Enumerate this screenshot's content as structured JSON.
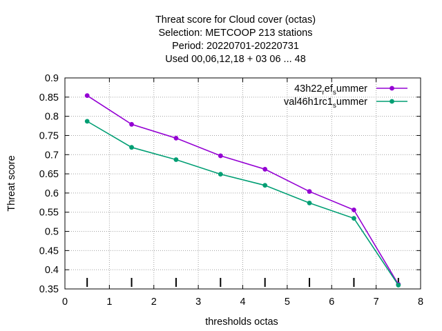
{
  "chart_data": {
    "type": "line",
    "title_lines": [
      "Threat score  for Cloud cover (octas)",
      "Selection: METCOOP    213 stations",
      "Period: 20220701-20220731",
      "Used  00,06,12,18  + 03 06 ... 48"
    ],
    "xlabel": "thresholds octas",
    "ylabel": "Threat score",
    "xlim": [
      0,
      8
    ],
    "ylim": [
      0.35,
      0.9
    ],
    "xticks": [
      "0",
      "1",
      "2",
      "3",
      "4",
      "5",
      "6",
      "7",
      "8"
    ],
    "yticks": [
      "0.35",
      "0.4",
      "0.45",
      "0.5",
      "0.55",
      "0.6",
      "0.65",
      "0.7",
      "0.75",
      "0.8",
      "0.85",
      "0.9"
    ],
    "grid": true,
    "legend_position": "top-right",
    "x": [
      0.5,
      1.5,
      2.5,
      3.5,
      4.5,
      5.5,
      6.5,
      7.5
    ],
    "series": [
      {
        "name_main": "43h22",
        "name_sub1": "r",
        "name_mid": "ef",
        "name_sub2": "s",
        "name_tail": "ummer",
        "color": "#9400d3",
        "values": [
          0.854,
          0.779,
          0.743,
          0.697,
          0.662,
          0.604,
          0.556,
          0.362
        ]
      },
      {
        "name_main": "val46h1rc1",
        "name_sub1": "s",
        "name_mid": "",
        "name_sub2": "",
        "name_tail": "ummer",
        "color": "#009e73",
        "values": [
          0.787,
          0.719,
          0.687,
          0.649,
          0.62,
          0.574,
          0.534,
          0.36
        ]
      }
    ],
    "threshold_marks_x": [
      0.5,
      1.5,
      2.5,
      3.5,
      4.5,
      5.5,
      6.5,
      7.5
    ]
  }
}
